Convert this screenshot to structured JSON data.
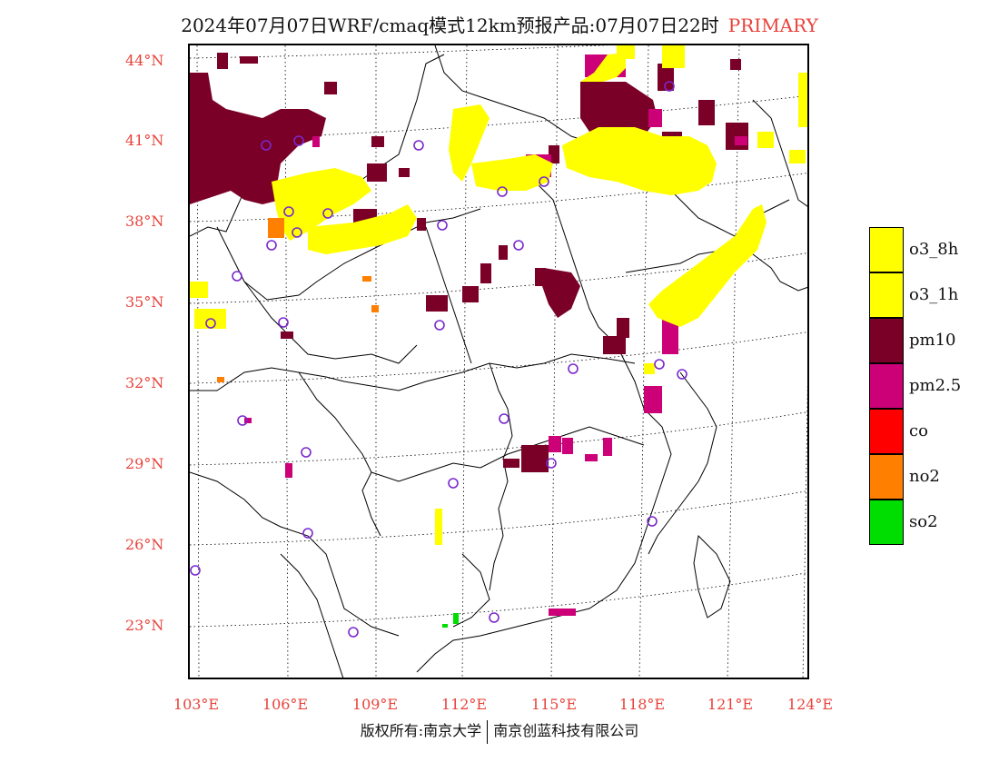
{
  "header": {
    "title": "2024年07月07日WRF/cmaq模式12km预报产品:07月07日22时",
    "tag": "PRIMARY"
  },
  "axes": {
    "lat_labels": [
      "44°N",
      "41°N",
      "38°N",
      "35°N",
      "32°N",
      "29°N",
      "26°N",
      "23°N"
    ],
    "lon_labels": [
      "103°E",
      "106°E",
      "109°E",
      "112°E",
      "115°E",
      "118°E",
      "121°E",
      "124°E"
    ]
  },
  "legend": {
    "items": [
      {
        "label": "o3_8h",
        "color": "#ffff00"
      },
      {
        "label": "o3_1h",
        "color": "#ffff00"
      },
      {
        "label": "pm10",
        "color": "#7a0028"
      },
      {
        "label": "pm2.5",
        "color": "#cc0077"
      },
      {
        "label": "co",
        "color": "#ff0000"
      },
      {
        "label": "no2",
        "color": "#ff7f00"
      },
      {
        "label": "so2",
        "color": "#00dd00"
      }
    ]
  },
  "footer": {
    "left": "版权所有:南京大学",
    "right": "南京创蓝科技有限公司"
  },
  "colors": {
    "label_red": "#e8423a",
    "station_circle": "#7a28cc"
  }
}
